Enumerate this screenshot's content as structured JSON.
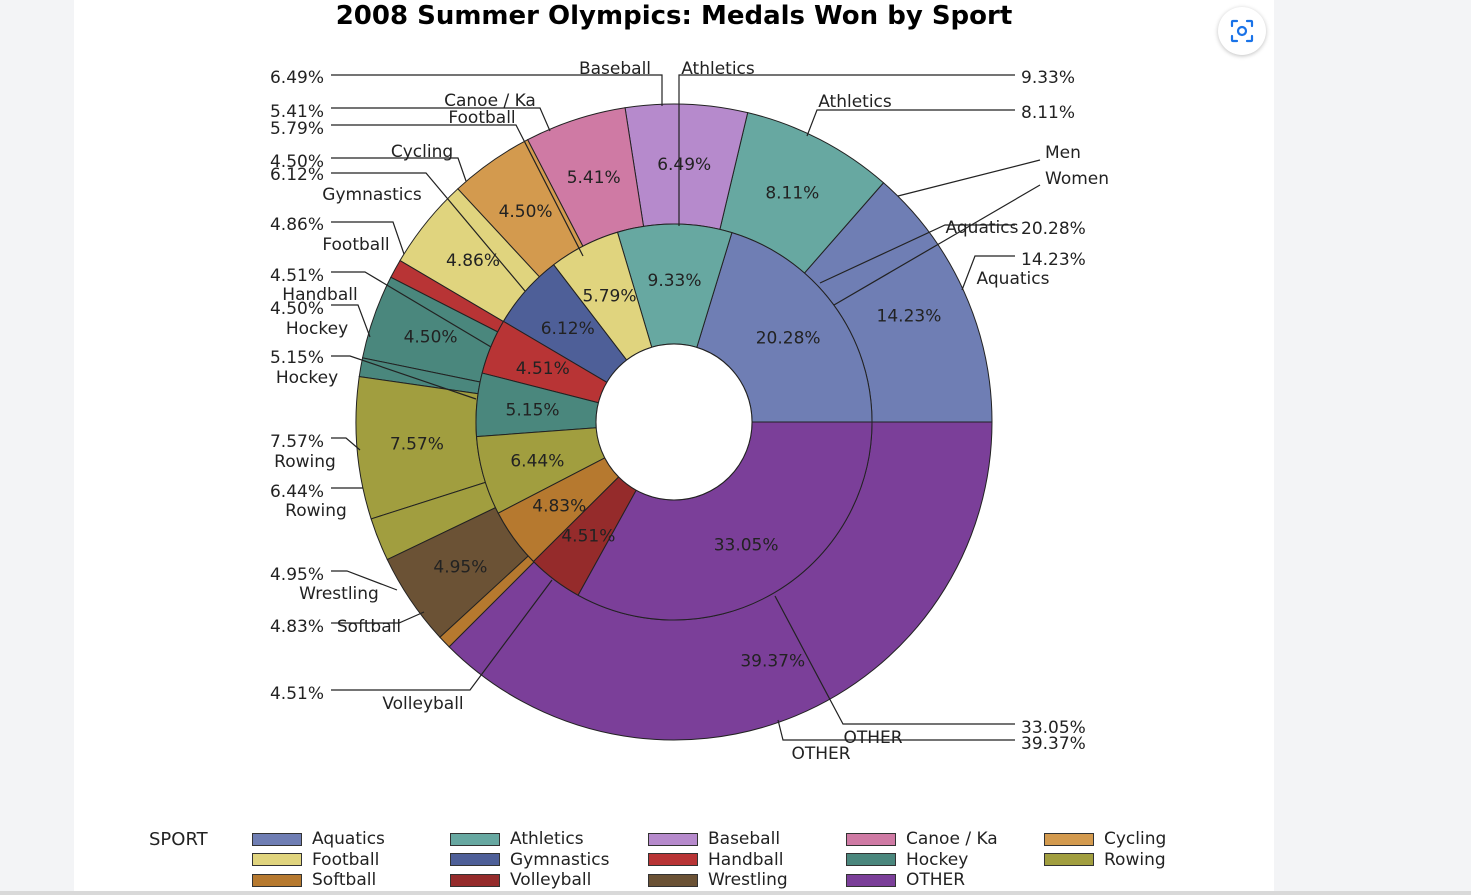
{
  "chart_data": {
    "type": "pie",
    "title": "2008 Summer Olympics: Medals Won by Sport",
    "legend_title": "SPORT",
    "legend_position": "bottom",
    "colors": {
      "Aquatics": "#6f7eb4",
      "Athletics": "#67a8a1",
      "Baseball": "#b68acc",
      "Canoe / Ka": "#cf7aa4",
      "Cycling": "#d39a4e",
      "Football": "#e0d47e",
      "Gymnastics": "#4e5f98",
      "Handball": "#b83435",
      "Hockey": "#4a877d",
      "Rowing": "#a19e3f",
      "Softball": "#b6792f",
      "Volleyball": "#952b2b",
      "Wrestling": "#6b5235",
      "OTHER": "#7b3f99"
    },
    "legend": [
      "Aquatics",
      "Athletics",
      "Baseball",
      "Canoe / Ka",
      "Cycling",
      "Football",
      "Gymnastics",
      "Handball",
      "Hockey",
      "Rowing",
      "Softball",
      "Volleyball",
      "Wrestling",
      "OTHER"
    ],
    "series": [
      {
        "name": "Women",
        "ring": "inner",
        "slices": [
          {
            "label": "Aquatics",
            "value": 20.28,
            "pct": "20.28%"
          },
          {
            "label": "Athletics",
            "value": 9.33,
            "pct": "9.33%"
          },
          {
            "label": "Football",
            "value": 5.79,
            "pct": "5.79%"
          },
          {
            "label": "Gymnastics",
            "value": 6.12,
            "pct": "6.12%"
          },
          {
            "label": "Handball",
            "value": 4.51,
            "pct": "4.51%"
          },
          {
            "label": "Hockey",
            "value": 5.15,
            "pct": "5.15%"
          },
          {
            "label": "Rowing",
            "value": 6.44,
            "pct": "6.44%"
          },
          {
            "label": "Softball",
            "value": 4.83,
            "pct": "4.83%"
          },
          {
            "label": "Volleyball",
            "value": 4.51,
            "pct": "4.51%"
          },
          {
            "label": "OTHER",
            "value": 33.05,
            "pct": "33.05%"
          }
        ]
      },
      {
        "name": "Men",
        "ring": "outer",
        "slices": [
          {
            "label": "Aquatics",
            "value": 14.23,
            "pct": "14.23%"
          },
          {
            "label": "Athletics",
            "value": 8.11,
            "pct": "8.11%"
          },
          {
            "label": "Baseball",
            "value": 6.49,
            "pct": "6.49%"
          },
          {
            "label": "Canoe / Ka",
            "value": 5.41,
            "pct": "5.41%"
          },
          {
            "label": "Cycling",
            "value": 4.5,
            "pct": "4.50%"
          },
          {
            "label": "Football",
            "value": 4.86,
            "pct": "4.86%"
          },
          {
            "label": "Handball",
            "value": 1.0,
            "pct": ""
          },
          {
            "label": "Hockey",
            "value": 4.5,
            "pct": "4.50%"
          },
          {
            "label": "Hockey",
            "value": 1.0,
            "pct": ""
          },
          {
            "label": "Rowing",
            "value": 7.57,
            "pct": "7.57%"
          },
          {
            "label": "Rowing",
            "value": 2.3,
            "pct": ""
          },
          {
            "label": "Wrestling",
            "value": 4.95,
            "pct": "4.95%"
          },
          {
            "label": "Softball",
            "value": 0.7,
            "pct": ""
          },
          {
            "label": "OTHER",
            "value": 39.37,
            "pct": "39.37%"
          }
        ]
      }
    ],
    "callouts": {
      "left": [
        {
          "pct": "6.49%",
          "label": "Baseball"
        },
        {
          "pct": "5.41%",
          "label": "Canoe / Ka"
        },
        {
          "pct": "5.79%",
          "label": "Football"
        },
        {
          "pct": "4.50%",
          "label": "Cycling"
        },
        {
          "pct": "6.12%",
          "label": "Gymnastics"
        },
        {
          "pct": "4.86%",
          "label": "Football"
        },
        {
          "pct": "4.51%",
          "label": "Handball"
        },
        {
          "pct": "4.50%",
          "label": "Hockey"
        },
        {
          "pct": "5.15%",
          "label": "Hockey"
        },
        {
          "pct": "7.57%",
          "label": "Rowing"
        },
        {
          "pct": "6.44%",
          "label": "Rowing"
        },
        {
          "pct": "4.95%",
          "label": "Wrestling"
        },
        {
          "pct": "4.83%",
          "label": "Softball"
        },
        {
          "pct": "4.51%",
          "label": "Volleyball"
        }
      ],
      "right": [
        {
          "pct": "9.33%",
          "label": "Athletics"
        },
        {
          "pct": "8.11%",
          "label": "Athletics"
        },
        {
          "pct": "",
          "label": "Men"
        },
        {
          "pct": "",
          "label": "Women"
        },
        {
          "pct": "20.28%",
          "label": "Aquatics"
        },
        {
          "pct": "14.23%",
          "label": "Aquatics"
        },
        {
          "pct": "33.05%",
          "label": "OTHER"
        },
        {
          "pct": "39.37%",
          "label": "OTHER"
        }
      ]
    }
  }
}
